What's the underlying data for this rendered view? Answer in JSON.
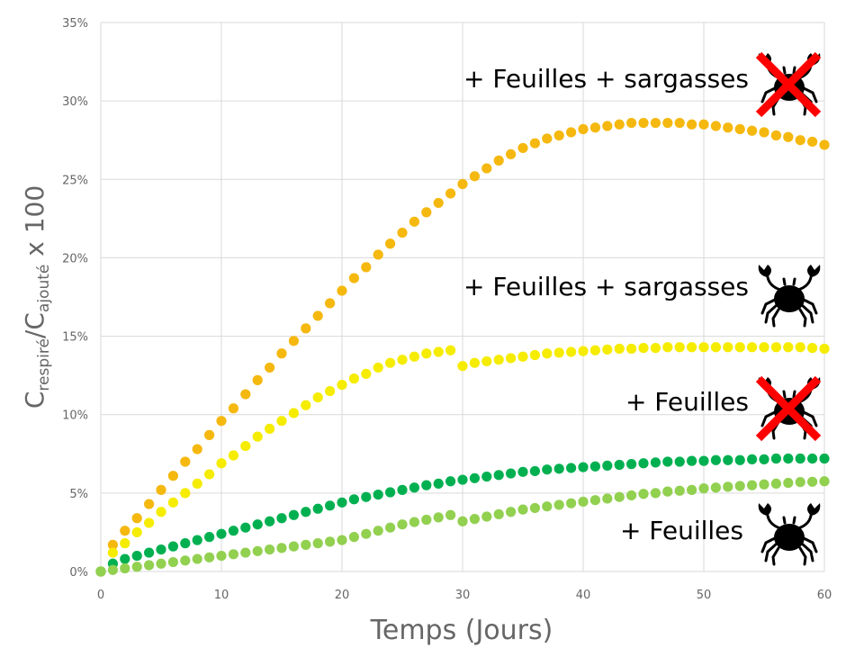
{
  "chart_data": {
    "type": "scatter",
    "xlabel": "Temps (Jours)",
    "ylabel": {
      "main": "C",
      "sub1": "respiré",
      "mid": "/C",
      "sub2": "ajouté",
      "tail": " x 100"
    },
    "xlim": [
      0,
      60
    ],
    "ylim": [
      0,
      35
    ],
    "x_ticks": [
      0,
      10,
      20,
      30,
      40,
      50,
      60
    ],
    "y_ticks": [
      0,
      5,
      10,
      15,
      20,
      25,
      30,
      35
    ],
    "y_tick_labels": [
      "0%",
      "5%",
      "10%",
      "15%",
      "20%",
      "25%",
      "30%",
      "35%"
    ],
    "grid": true,
    "marker": "circle",
    "colors": {
      "gridline": "#d9d9d9",
      "axis_text": "#666666",
      "cross": "#ff0000",
      "crab": "#000000"
    },
    "series": [
      {
        "name": "+ Feuilles + sargasses",
        "crab": "crossed",
        "color": "#f5b80f",
        "points": [
          [
            0,
            0
          ],
          [
            1,
            1.7
          ],
          [
            2,
            2.6
          ],
          [
            3,
            3.4
          ],
          [
            4,
            4.3
          ],
          [
            5,
            5.2
          ],
          [
            6,
            6.1
          ],
          [
            7,
            7.0
          ],
          [
            8,
            7.8
          ],
          [
            9,
            8.7
          ],
          [
            10,
            9.6
          ],
          [
            11,
            10.4
          ],
          [
            12,
            11.3
          ],
          [
            13,
            12.2
          ],
          [
            14,
            13.0
          ],
          [
            15,
            13.9
          ],
          [
            16,
            14.7
          ],
          [
            17,
            15.5
          ],
          [
            18,
            16.3
          ],
          [
            19,
            17.1
          ],
          [
            20,
            17.9
          ],
          [
            21,
            18.7
          ],
          [
            22,
            19.4
          ],
          [
            23,
            20.2
          ],
          [
            24,
            20.9
          ],
          [
            25,
            21.6
          ],
          [
            26,
            22.3
          ],
          [
            27,
            22.9
          ],
          [
            28,
            23.5
          ],
          [
            29,
            24.1
          ],
          [
            30,
            24.7
          ],
          [
            31,
            25.2
          ],
          [
            32,
            25.7
          ],
          [
            33,
            26.2
          ],
          [
            34,
            26.6
          ],
          [
            35,
            27.0
          ],
          [
            36,
            27.3
          ],
          [
            37,
            27.6
          ],
          [
            38,
            27.8
          ],
          [
            39,
            28.0
          ],
          [
            40,
            28.2
          ],
          [
            41,
            28.3
          ],
          [
            42,
            28.4
          ],
          [
            43,
            28.5
          ],
          [
            44,
            28.6
          ],
          [
            45,
            28.6
          ],
          [
            46,
            28.6
          ],
          [
            47,
            28.6
          ],
          [
            48,
            28.6
          ],
          [
            49,
            28.5
          ],
          [
            50,
            28.5
          ],
          [
            51,
            28.4
          ],
          [
            52,
            28.3
          ],
          [
            53,
            28.2
          ],
          [
            54,
            28.1
          ],
          [
            55,
            28.0
          ],
          [
            56,
            27.8
          ],
          [
            57,
            27.7
          ],
          [
            58,
            27.5
          ],
          [
            59,
            27.4
          ],
          [
            60,
            27.2
          ]
        ]
      },
      {
        "name": "+ Feuilles + sargasses",
        "crab": "plain",
        "color": "#f5ec00",
        "points": [
          [
            0,
            0
          ],
          [
            1,
            1.2
          ],
          [
            2,
            1.8
          ],
          [
            3,
            2.5
          ],
          [
            4,
            3.1
          ],
          [
            5,
            3.8
          ],
          [
            6,
            4.4
          ],
          [
            7,
            5.0
          ],
          [
            8,
            5.6
          ],
          [
            9,
            6.2
          ],
          [
            10,
            6.9
          ],
          [
            11,
            7.4
          ],
          [
            12,
            8.0
          ],
          [
            13,
            8.6
          ],
          [
            14,
            9.1
          ],
          [
            15,
            9.6
          ],
          [
            16,
            10.1
          ],
          [
            17,
            10.6
          ],
          [
            18,
            11.1
          ],
          [
            19,
            11.5
          ],
          [
            20,
            11.9
          ],
          [
            21,
            12.3
          ],
          [
            22,
            12.6
          ],
          [
            23,
            13.0
          ],
          [
            24,
            13.3
          ],
          [
            25,
            13.5
          ],
          [
            26,
            13.7
          ],
          [
            27,
            13.9
          ],
          [
            28,
            14.0
          ],
          [
            29,
            14.1
          ],
          [
            30,
            13.1
          ],
          [
            31,
            13.3
          ],
          [
            32,
            13.4
          ],
          [
            33,
            13.5
          ],
          [
            34,
            13.6
          ],
          [
            35,
            13.7
          ],
          [
            36,
            13.8
          ],
          [
            37,
            13.9
          ],
          [
            38,
            13.95
          ],
          [
            39,
            14.0
          ],
          [
            40,
            14.05
          ],
          [
            41,
            14.1
          ],
          [
            42,
            14.15
          ],
          [
            43,
            14.2
          ],
          [
            44,
            14.2
          ],
          [
            45,
            14.25
          ],
          [
            46,
            14.25
          ],
          [
            47,
            14.3
          ],
          [
            48,
            14.3
          ],
          [
            49,
            14.3
          ],
          [
            50,
            14.3
          ],
          [
            51,
            14.3
          ],
          [
            52,
            14.3
          ],
          [
            53,
            14.3
          ],
          [
            54,
            14.3
          ],
          [
            55,
            14.3
          ],
          [
            56,
            14.3
          ],
          [
            57,
            14.3
          ],
          [
            58,
            14.3
          ],
          [
            59,
            14.25
          ],
          [
            60,
            14.2
          ]
        ]
      },
      {
        "name": "+ Feuilles",
        "crab": "crossed",
        "color": "#00b050",
        "points": [
          [
            0,
            0
          ],
          [
            1,
            0.5
          ],
          [
            2,
            0.8
          ],
          [
            3,
            1.0
          ],
          [
            4,
            1.2
          ],
          [
            5,
            1.4
          ],
          [
            6,
            1.6
          ],
          [
            7,
            1.8
          ],
          [
            8,
            2.0
          ],
          [
            9,
            2.2
          ],
          [
            10,
            2.4
          ],
          [
            11,
            2.6
          ],
          [
            12,
            2.8
          ],
          [
            13,
            3.0
          ],
          [
            14,
            3.2
          ],
          [
            15,
            3.4
          ],
          [
            16,
            3.6
          ],
          [
            17,
            3.8
          ],
          [
            18,
            4.0
          ],
          [
            19,
            4.2
          ],
          [
            20,
            4.4
          ],
          [
            21,
            4.6
          ],
          [
            22,
            4.75
          ],
          [
            23,
            4.9
          ],
          [
            24,
            5.05
          ],
          [
            25,
            5.2
          ],
          [
            26,
            5.35
          ],
          [
            27,
            5.5
          ],
          [
            28,
            5.6
          ],
          [
            29,
            5.75
          ],
          [
            30,
            5.85
          ],
          [
            31,
            5.95
          ],
          [
            32,
            6.05
          ],
          [
            33,
            6.15
          ],
          [
            34,
            6.25
          ],
          [
            35,
            6.35
          ],
          [
            36,
            6.4
          ],
          [
            37,
            6.5
          ],
          [
            38,
            6.55
          ],
          [
            39,
            6.6
          ],
          [
            40,
            6.65
          ],
          [
            41,
            6.7
          ],
          [
            42,
            6.75
          ],
          [
            43,
            6.8
          ],
          [
            44,
            6.85
          ],
          [
            45,
            6.9
          ],
          [
            46,
            6.95
          ],
          [
            47,
            7.0
          ],
          [
            48,
            7.0
          ],
          [
            49,
            7.05
          ],
          [
            50,
            7.05
          ],
          [
            51,
            7.1
          ],
          [
            52,
            7.1
          ],
          [
            53,
            7.1
          ],
          [
            54,
            7.15
          ],
          [
            55,
            7.15
          ],
          [
            56,
            7.2
          ],
          [
            57,
            7.2
          ],
          [
            58,
            7.2
          ],
          [
            59,
            7.2
          ],
          [
            60,
            7.2
          ]
        ]
      },
      {
        "name": "+ Feuilles",
        "crab": "plain",
        "color": "#92d050",
        "points": [
          [
            0,
            0
          ],
          [
            1,
            0.1
          ],
          [
            2,
            0.2
          ],
          [
            3,
            0.3
          ],
          [
            4,
            0.4
          ],
          [
            5,
            0.5
          ],
          [
            6,
            0.6
          ],
          [
            7,
            0.7
          ],
          [
            8,
            0.8
          ],
          [
            9,
            0.9
          ],
          [
            10,
            1.0
          ],
          [
            11,
            1.1
          ],
          [
            12,
            1.2
          ],
          [
            13,
            1.3
          ],
          [
            14,
            1.4
          ],
          [
            15,
            1.5
          ],
          [
            16,
            1.6
          ],
          [
            17,
            1.7
          ],
          [
            18,
            1.8
          ],
          [
            19,
            1.9
          ],
          [
            20,
            2.0
          ],
          [
            21,
            2.2
          ],
          [
            22,
            2.4
          ],
          [
            23,
            2.6
          ],
          [
            24,
            2.8
          ],
          [
            25,
            3.0
          ],
          [
            26,
            3.15
          ],
          [
            27,
            3.3
          ],
          [
            28,
            3.45
          ],
          [
            29,
            3.6
          ],
          [
            30,
            3.2
          ],
          [
            31,
            3.35
          ],
          [
            32,
            3.5
          ],
          [
            33,
            3.65
          ],
          [
            34,
            3.8
          ],
          [
            35,
            3.95
          ],
          [
            36,
            4.05
          ],
          [
            37,
            4.15
          ],
          [
            38,
            4.25
          ],
          [
            39,
            4.35
          ],
          [
            40,
            4.45
          ],
          [
            41,
            4.55
          ],
          [
            42,
            4.65
          ],
          [
            43,
            4.75
          ],
          [
            44,
            4.85
          ],
          [
            45,
            4.95
          ],
          [
            46,
            5.0
          ],
          [
            47,
            5.1
          ],
          [
            48,
            5.15
          ],
          [
            49,
            5.2
          ],
          [
            50,
            5.3
          ],
          [
            51,
            5.35
          ],
          [
            52,
            5.4
          ],
          [
            53,
            5.45
          ],
          [
            54,
            5.5
          ],
          [
            55,
            5.55
          ],
          [
            56,
            5.6
          ],
          [
            57,
            5.65
          ],
          [
            58,
            5.7
          ],
          [
            59,
            5.72
          ],
          [
            60,
            5.75
          ]
        ]
      }
    ]
  }
}
